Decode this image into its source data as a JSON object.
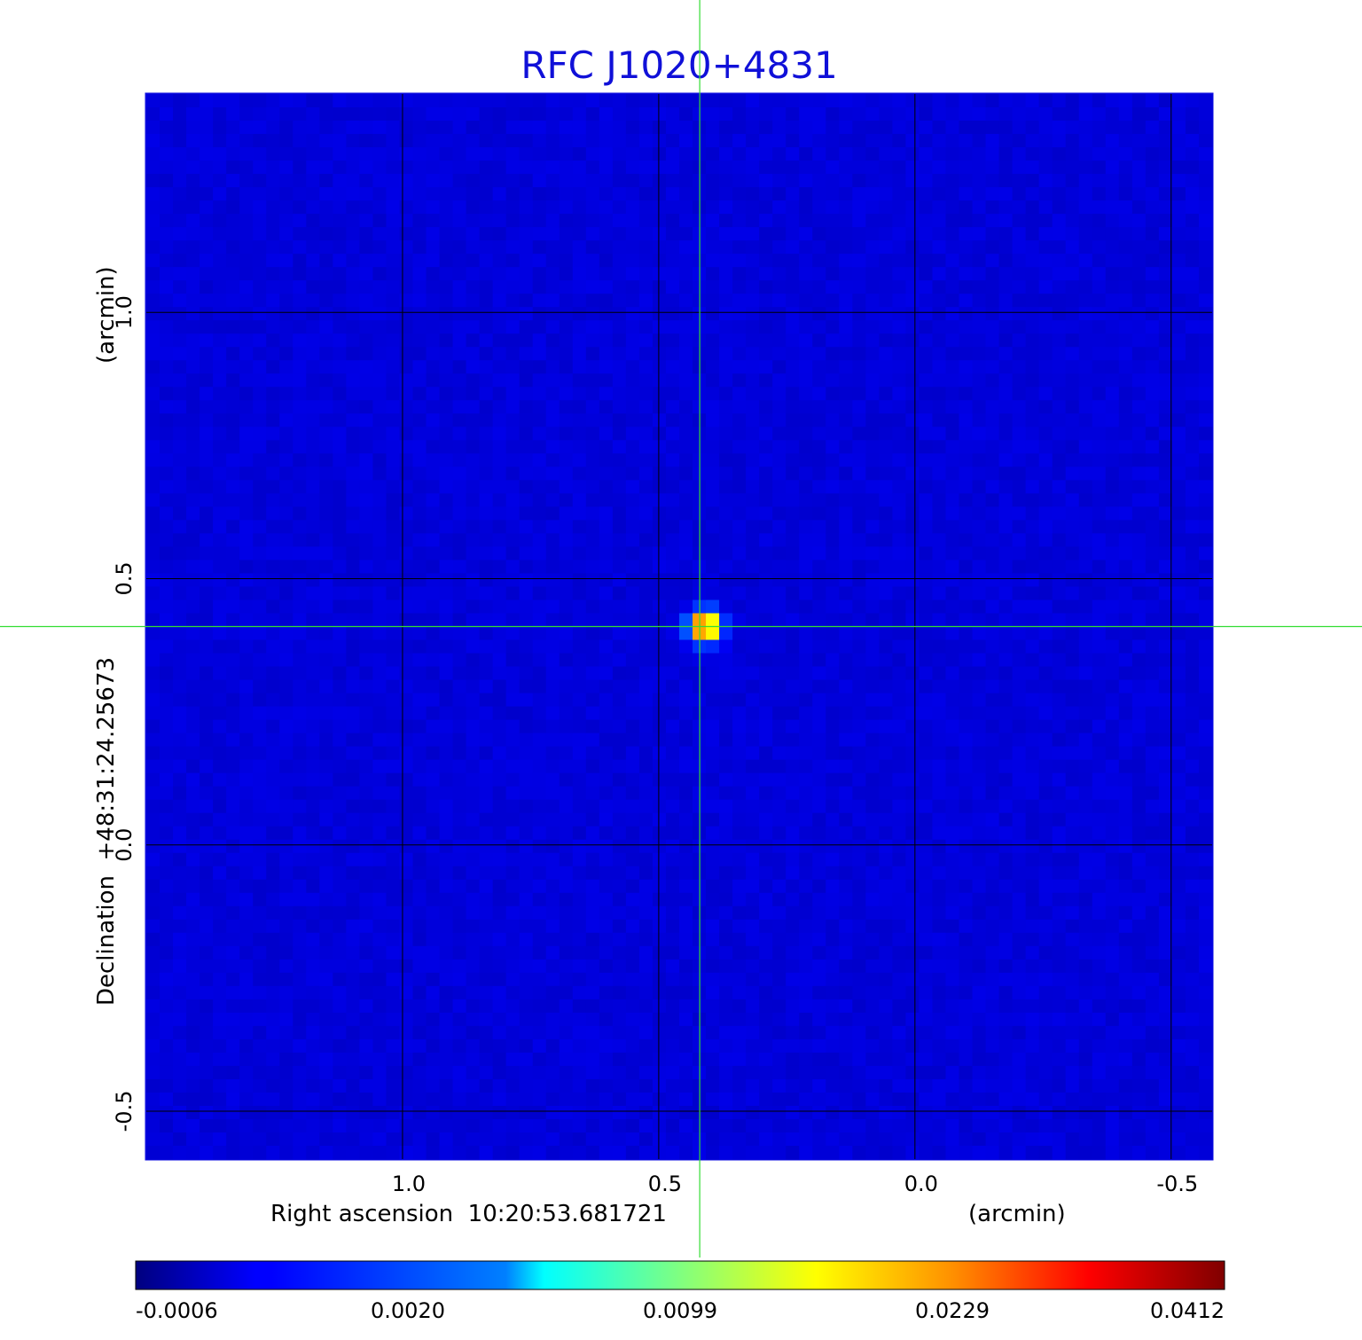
{
  "chart_data": {
    "type": "heatmap",
    "title": "RFC J1020+4831",
    "xlabel": "Right ascension  10:20:53.681721",
    "xunit": "(arcmin)",
    "ylabel": "Declination  +48:31:24.25673",
    "yunit": "(arcmin)",
    "x_ticks": [
      "1.0",
      "0.5",
      "0.0",
      "-0.5"
    ],
    "y_ticks": [
      "1.0",
      "0.5",
      "0.0",
      "-0.5"
    ],
    "xlim": [
      1.5,
      -0.58
    ],
    "ylim": [
      -0.59,
      1.41
    ],
    "x_tick_values": [
      1.0,
      0.5,
      0.0,
      -0.5
    ],
    "y_tick_values": [
      1.0,
      0.5,
      0.0,
      -0.5
    ],
    "grid": true,
    "crosshair": {
      "x": 0.42,
      "y": 0.41
    },
    "source_peak": {
      "x": 0.41,
      "y": 0.41,
      "value": 0.0412
    },
    "colorbar": {
      "colormap": "jet",
      "placement": "bottom",
      "ticks": [
        "-0.0006",
        "0.0020",
        "0.0099",
        "0.0229",
        "0.0412"
      ],
      "min": -0.0006,
      "max": 0.0412
    },
    "colors": {
      "title": "#1010d8",
      "grid": "#000000",
      "crosshair": "#33dd33",
      "frame": "#1010e0"
    }
  }
}
